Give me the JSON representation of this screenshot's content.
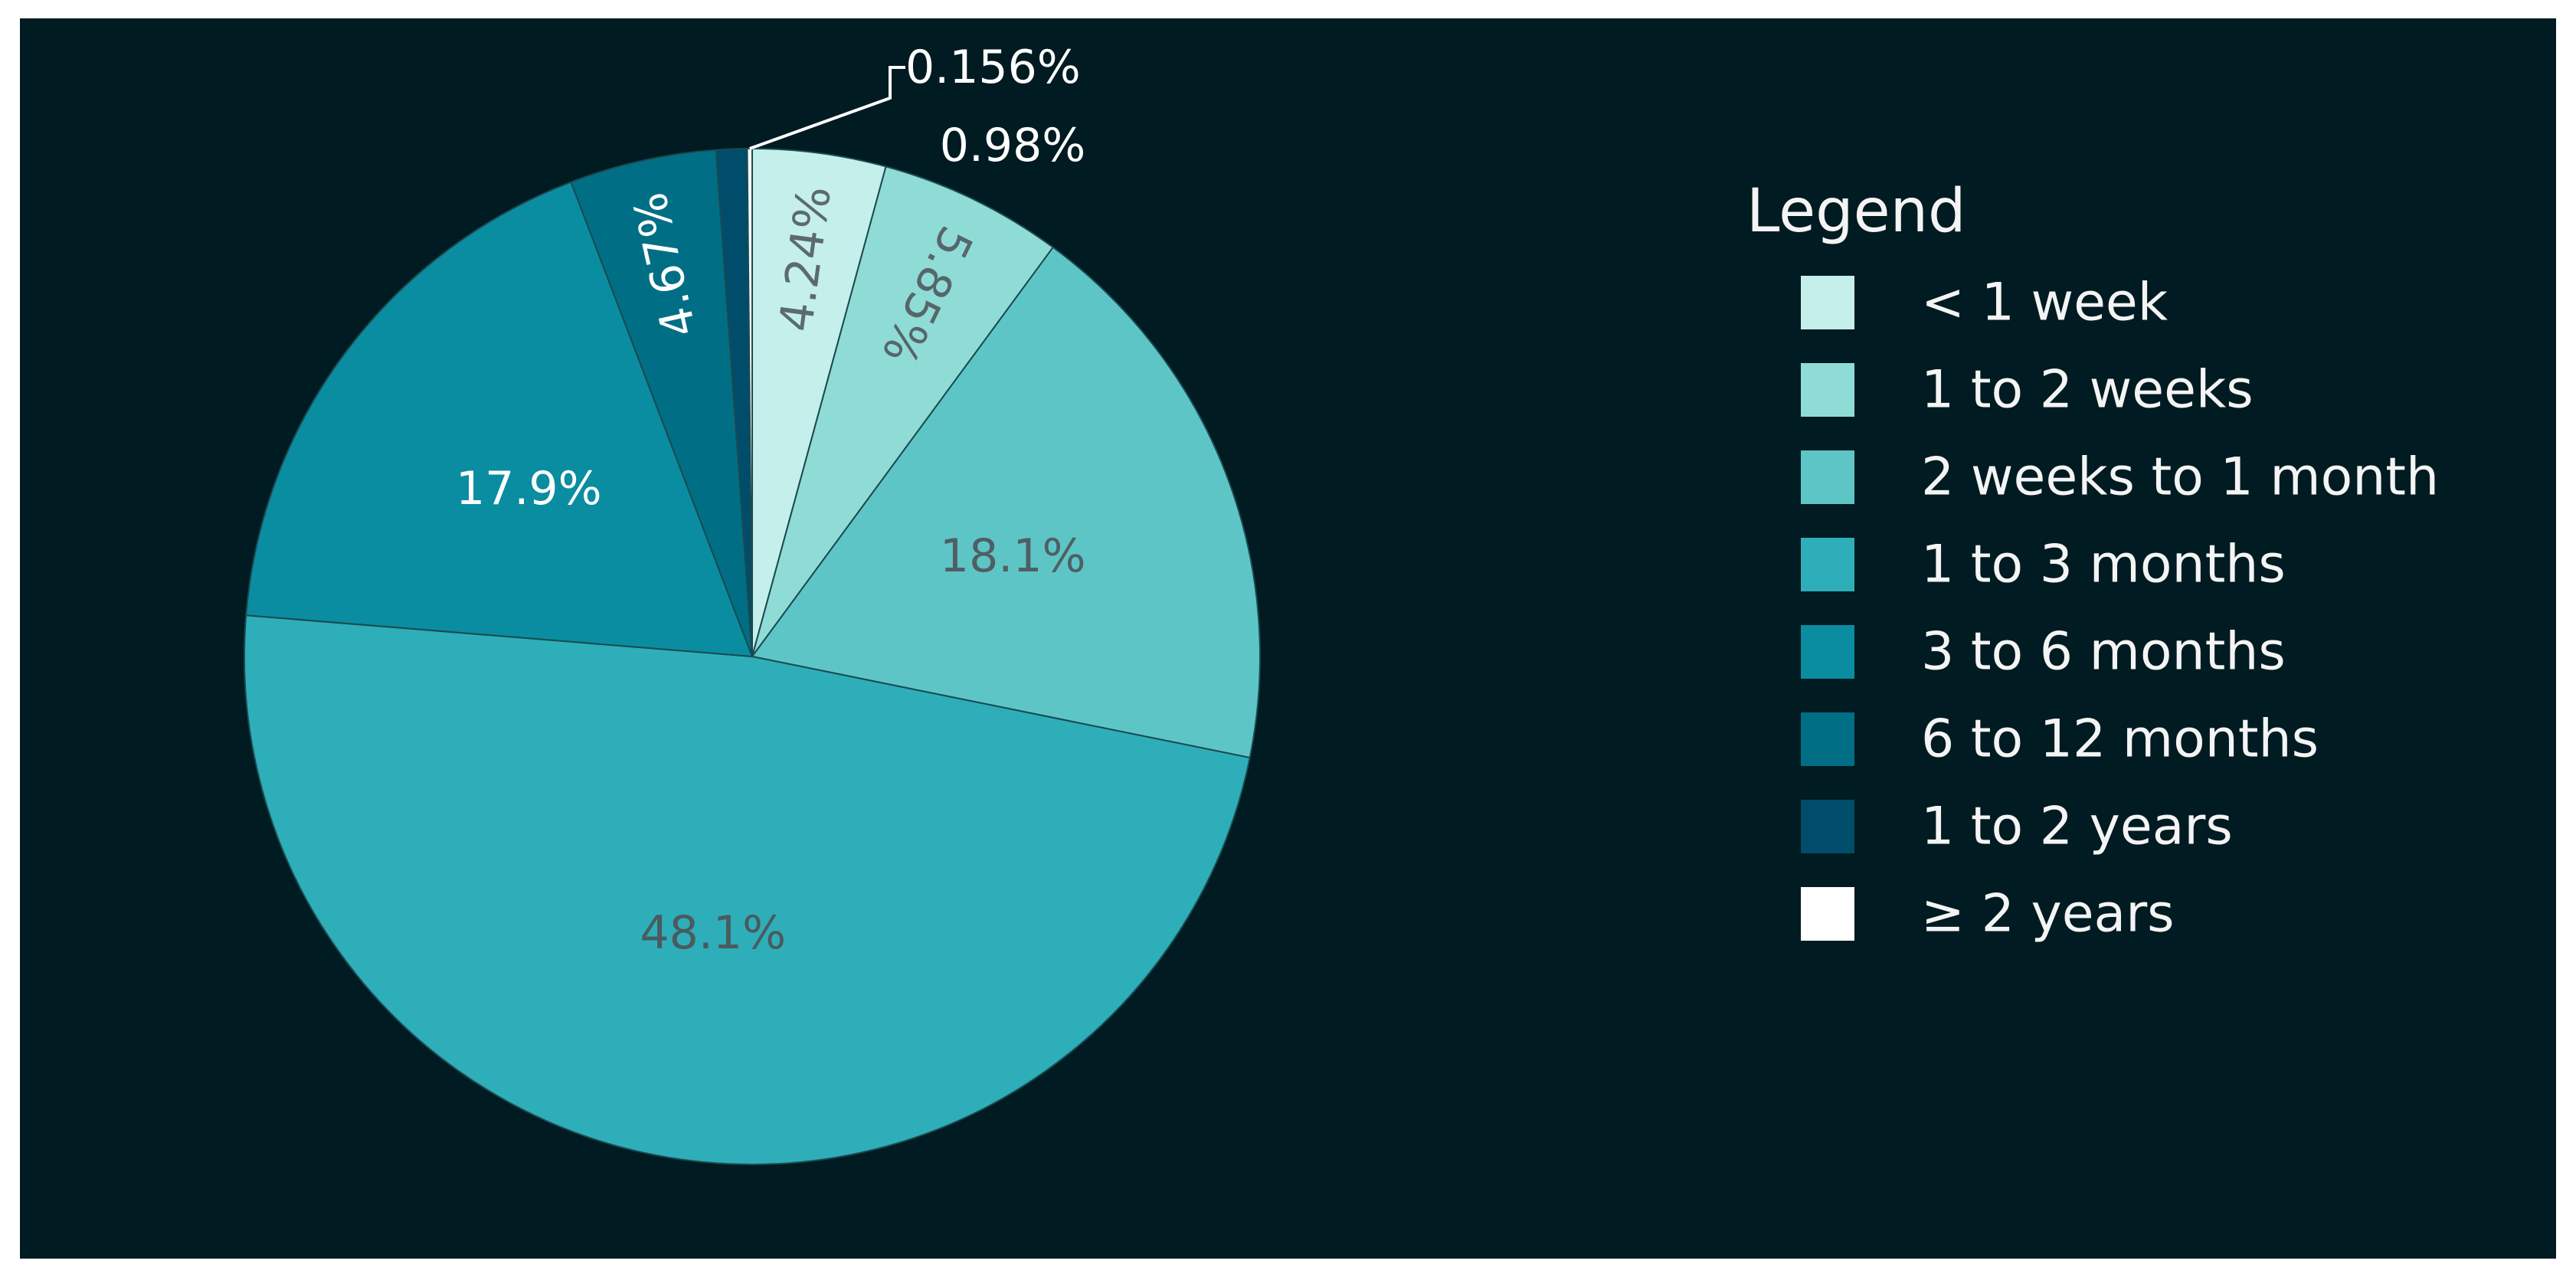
{
  "chart_data": {
    "type": "pie",
    "title": "",
    "legend_title": "Legend",
    "legend_position": "right",
    "start_angle_deg": 0,
    "direction": "clockwise",
    "background": "#001b21",
    "slices": [
      {
        "label": "< 1 week",
        "value": 4.24,
        "text": "4.24%",
        "color": "#c5efea",
        "text_color": "#5b6b6b",
        "text_mode": "radial"
      },
      {
        "label": "1 to 2 weeks",
        "value": 5.85,
        "text": "5.85%",
        "color": "#8fdcd6",
        "text_color": "#56666a",
        "text_mode": "radial-flip"
      },
      {
        "label": "2 weeks to 1 month",
        "value": 18.1,
        "text": "18.1%",
        "color": "#5ec5c6",
        "text_color": "#4f5f63",
        "text_mode": "horizontal"
      },
      {
        "label": "1 to 3 months",
        "value": 48.1,
        "text": "48.1%",
        "color": "#2eaeb9",
        "text_color": "#4a5a5e",
        "text_mode": "horizontal"
      },
      {
        "label": "3 to 6 months",
        "value": 17.9,
        "text": "17.9%",
        "color": "#0a8da1",
        "text_color": "#ffffff",
        "text_mode": "horizontal"
      },
      {
        "label": "6 to 12 months",
        "value": 4.67,
        "text": "4.67%",
        "color": "#006f86",
        "text_color": "#ffffff",
        "text_mode": "radial"
      },
      {
        "label": "1 to 2 years",
        "value": 0.98,
        "text": "0.98%",
        "color": "#004d6b",
        "text_color": "#ffffff",
        "text_mode": "outside"
      },
      {
        "label": "≥ 2 years",
        "value": 0.156,
        "text": "0.156%",
        "color": "#ffffff",
        "text_color": "#ffffff",
        "text_mode": "outside-leader"
      }
    ]
  }
}
